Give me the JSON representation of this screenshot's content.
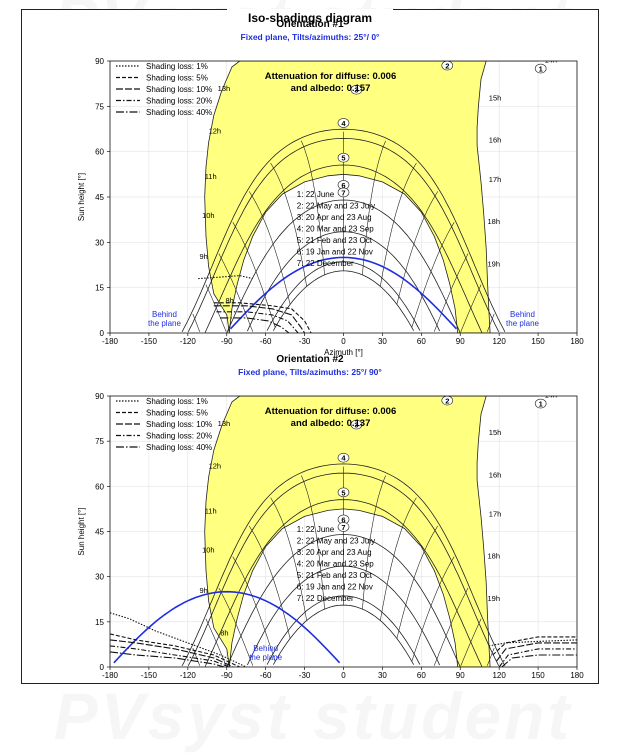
{
  "watermark": "PVsyst student",
  "title": "Iso-shadings diagram",
  "chart_data": [
    {
      "type": "line",
      "panel_title": "Orientation #1",
      "subtitle": "Fixed plane, Tilts/azimuths: 25°/ 0°",
      "xlabel": "Azimuth [°]",
      "ylabel": "Sun height [°]",
      "xlim": [
        -180,
        180
      ],
      "ylim": [
        0,
        90
      ],
      "xticks": [
        -180,
        -150,
        -120,
        -90,
        -60,
        -30,
        0,
        30,
        60,
        90,
        120,
        150,
        180
      ],
      "yticks": [
        0,
        15,
        30,
        45,
        60,
        75,
        90
      ],
      "attenuation_text": [
        "Attenuation for diffuse: 0.006",
        "and albedo: 0.157"
      ],
      "behind_label": [
        "Behind",
        "the plane"
      ],
      "behind_curve": {
        "center_azimuth": 0,
        "peak_height": 25
      },
      "shading_region": [
        [
          -90,
          6
        ],
        [
          -100,
          13
        ],
        [
          -104,
          22
        ],
        [
          -106,
          32
        ],
        [
          -107,
          45
        ],
        [
          -106,
          55
        ],
        [
          -104,
          63
        ],
        [
          -100,
          72
        ],
        [
          -94,
          80
        ],
        [
          -86,
          88
        ],
        [
          -80,
          90
        ],
        [
          150,
          90
        ],
        [
          110,
          90
        ],
        [
          106,
          84
        ],
        [
          104,
          75
        ],
        [
          103,
          68
        ],
        [
          103,
          62
        ],
        [
          104,
          58
        ],
        [
          106,
          50
        ],
        [
          108,
          40
        ],
        [
          110,
          28
        ],
        [
          111,
          17
        ],
        [
          112,
          8
        ],
        [
          113,
          0
        ],
        [
          88,
          0
        ],
        [
          86,
          8
        ],
        [
          82,
          16
        ],
        [
          77,
          24
        ],
        [
          70,
          32
        ],
        [
          60,
          40
        ],
        [
          47,
          46
        ],
        [
          30,
          50
        ],
        [
          12,
          52
        ],
        [
          0,
          52.5
        ],
        [
          -12,
          52
        ],
        [
          -30,
          50
        ],
        [
          -47,
          46
        ],
        [
          -60,
          40
        ],
        [
          -70,
          32
        ],
        [
          -77,
          24
        ],
        [
          -82,
          16
        ],
        [
          -86,
          8
        ],
        [
          -88,
          0
        ]
      ],
      "shading_losses": [
        {
          "label": "Shading loss: 1%",
          "curve": [
            [
              -112,
              18
            ],
            [
              -95,
              18.5
            ],
            [
              -80,
              19
            ],
            [
              -70,
              18
            ]
          ]
        },
        {
          "label": "Shading loss: 5%",
          "curve": [
            [
              -100,
              10
            ],
            [
              -80,
              10
            ],
            [
              -55,
              9
            ],
            [
              -40,
              8
            ],
            [
              -30,
              4
            ],
            [
              -25,
              0
            ]
          ]
        },
        {
          "label": "Shading loss: 10%",
          "curve": [
            [
              -100,
              9
            ],
            [
              -75,
              9
            ],
            [
              -55,
              8
            ],
            [
              -40,
              6
            ],
            [
              -33,
              2
            ],
            [
              -30,
              0
            ]
          ]
        },
        {
          "label": "Shading loss: 20%",
          "curve": [
            [
              -98,
              7
            ],
            [
              -75,
              7
            ],
            [
              -55,
              6
            ],
            [
              -43,
              4
            ],
            [
              -37,
              1
            ],
            [
              -35,
              0
            ]
          ]
        },
        {
          "label": "Shading loss: 40%",
          "curve": [
            [
              -95,
              5
            ],
            [
              -75,
              5
            ],
            [
              -58,
              4
            ],
            [
              -48,
              2
            ],
            [
              -42,
              0
            ]
          ]
        }
      ],
      "hour_labels": [
        {
          "text": "14h",
          "az": 155,
          "h": 89.5
        },
        {
          "text": "13h",
          "az": -97,
          "h": 80
        },
        {
          "text": "12h",
          "az": -104,
          "h": 66
        },
        {
          "text": "11h",
          "az": -107,
          "h": 51
        },
        {
          "text": "10h",
          "az": -109,
          "h": 38
        },
        {
          "text": "9h",
          "az": -111,
          "h": 24.5
        },
        {
          "text": "8h",
          "az": -91,
          "h": 10
        },
        {
          "text": "15h",
          "az": 112,
          "h": 77
        },
        {
          "text": "16h",
          "az": 112,
          "h": 63
        },
        {
          "text": "17h",
          "az": 112,
          "h": 50
        },
        {
          "text": "18h",
          "az": 111,
          "h": 36
        },
        {
          "text": "19h",
          "az": 111,
          "h": 22
        }
      ],
      "date_markers": [
        {
          "n": "1",
          "az": 152,
          "h": 87.5
        },
        {
          "n": "2",
          "az": 80,
          "h": 88.5
        },
        {
          "n": "3",
          "az": 10,
          "h": 80.5
        },
        {
          "n": "4",
          "az": 0,
          "h": 69.5
        },
        {
          "n": "5",
          "az": 0,
          "h": 58
        },
        {
          "n": "6",
          "az": 0,
          "h": 49
        },
        {
          "n": "7",
          "az": 0,
          "h": 46.5
        }
      ],
      "date_legend": [
        "1: 22 June",
        "2: 22 May and 23 July",
        "3: 20 Apr and 23 Aug",
        "4: 20 Mar and 23 Sep",
        "5: 21 Feb and 23 Oct",
        "6: 19 Jan and 22 Nov",
        "7: 22 December"
      ]
    },
    {
      "type": "line",
      "panel_title": "Orientation #2",
      "subtitle": "Fixed plane, Tilts/azimuths: 25°/ 90°",
      "xlabel": "Azimuth [°]",
      "ylabel": "Sun height [°]",
      "xlim": [
        -180,
        180
      ],
      "ylim": [
        0,
        90
      ],
      "xticks": [
        -180,
        -150,
        -120,
        -90,
        -60,
        -30,
        0,
        30,
        60,
        90,
        120,
        150,
        180
      ],
      "yticks": [
        0,
        15,
        30,
        45,
        60,
        75,
        90
      ],
      "attenuation_text": [
        "Attenuation for diffuse: 0.006",
        "and albedo: 0.137"
      ],
      "behind_label": [
        "Behind",
        "the plane"
      ],
      "behind_curve": {
        "center_azimuth": -90,
        "peak_height": 25
      },
      "shading_region": [
        [
          -90,
          6
        ],
        [
          -100,
          13
        ],
        [
          -104,
          22
        ],
        [
          -106,
          32
        ],
        [
          -107,
          45
        ],
        [
          -106,
          55
        ],
        [
          -104,
          63
        ],
        [
          -100,
          72
        ],
        [
          -94,
          80
        ],
        [
          -86,
          88
        ],
        [
          -80,
          90
        ],
        [
          150,
          90
        ],
        [
          110,
          90
        ],
        [
          106,
          84
        ],
        [
          104,
          75
        ],
        [
          103,
          68
        ],
        [
          103,
          62
        ],
        [
          104,
          58
        ],
        [
          106,
          50
        ],
        [
          108,
          40
        ],
        [
          110,
          28
        ],
        [
          111,
          17
        ],
        [
          112,
          8
        ],
        [
          113,
          0
        ],
        [
          88,
          0
        ],
        [
          86,
          8
        ],
        [
          82,
          16
        ],
        [
          77,
          24
        ],
        [
          70,
          32
        ],
        [
          60,
          40
        ],
        [
          47,
          46
        ],
        [
          30,
          50
        ],
        [
          12,
          52
        ],
        [
          0,
          52.5
        ],
        [
          -12,
          52
        ],
        [
          -30,
          50
        ],
        [
          -47,
          46
        ],
        [
          -60,
          40
        ],
        [
          -70,
          32
        ],
        [
          -77,
          24
        ],
        [
          -82,
          16
        ],
        [
          -86,
          8
        ],
        [
          -88,
          0
        ]
      ],
      "shading_losses": [
        {
          "label": "Shading loss: 1%",
          "curve": [
            [
              -180,
              18
            ],
            [
              -165,
              16
            ],
            [
              -145,
              12
            ],
            [
              -120,
              8
            ],
            [
              -95,
              4
            ],
            [
              -75,
              0
            ]
          ],
          "curve_right": [
            [
              112,
              7
            ],
            [
              125,
              8
            ],
            [
              150,
              8.5
            ],
            [
              180,
              9
            ]
          ]
        },
        {
          "label": "Shading loss: 5%",
          "curve": [
            [
              -180,
              11
            ],
            [
              -160,
              9
            ],
            [
              -130,
              7
            ],
            [
              -100,
              4
            ],
            [
              -80,
              0
            ]
          ],
          "curve_right": [
            [
              115,
              4
            ],
            [
              125,
              8
            ],
            [
              150,
              10
            ],
            [
              180,
              10
            ]
          ]
        },
        {
          "label": "Shading loss: 10%",
          "curve": [
            [
              -180,
              9
            ],
            [
              -160,
              8
            ],
            [
              -130,
              6
            ],
            [
              -100,
              3
            ],
            [
              -85,
              0
            ]
          ],
          "curve_right": [
            [
              118,
              2
            ],
            [
              125,
              6
            ],
            [
              150,
              8
            ],
            [
              180,
              8
            ]
          ]
        },
        {
          "label": "Shading loss: 20%",
          "curve": [
            [
              -180,
              7
            ],
            [
              -160,
              6
            ],
            [
              -130,
              4
            ],
            [
              -100,
              2
            ],
            [
              -88,
              0
            ]
          ],
          "curve_right": [
            [
              120,
              0
            ],
            [
              127,
              4
            ],
            [
              150,
              6
            ],
            [
              180,
              6
            ]
          ]
        },
        {
          "label": "Shading loss: 40%",
          "curve": [
            [
              -180,
              5
            ],
            [
              -160,
              4
            ],
            [
              -130,
              3
            ],
            [
              -100,
              1
            ],
            [
              -92,
              0
            ]
          ],
          "curve_right": [
            [
              122,
              0
            ],
            [
              130,
              3
            ],
            [
              150,
              4
            ],
            [
              180,
              4
            ]
          ]
        }
      ],
      "hour_labels": [
        {
          "text": "14h",
          "az": 155,
          "h": 89.5
        },
        {
          "text": "13h",
          "az": -97,
          "h": 80
        },
        {
          "text": "12h",
          "az": -104,
          "h": 66
        },
        {
          "text": "11h",
          "az": -107,
          "h": 51
        },
        {
          "text": "10h",
          "az": -109,
          "h": 38
        },
        {
          "text": "9h",
          "az": -111,
          "h": 24.5
        },
        {
          "text": "8h",
          "az": -95,
          "h": 10.5
        },
        {
          "text": "15h",
          "az": 112,
          "h": 77
        },
        {
          "text": "16h",
          "az": 112,
          "h": 63
        },
        {
          "text": "17h",
          "az": 112,
          "h": 50
        },
        {
          "text": "18h",
          "az": 111,
          "h": 36
        },
        {
          "text": "19h",
          "az": 111,
          "h": 22
        }
      ],
      "date_markers": [
        {
          "n": "1",
          "az": 152,
          "h": 87.5
        },
        {
          "n": "2",
          "az": 80,
          "h": 88.5
        },
        {
          "n": "3",
          "az": 10,
          "h": 80.5
        },
        {
          "n": "4",
          "az": 0,
          "h": 69.5
        },
        {
          "n": "5",
          "az": 0,
          "h": 58
        },
        {
          "n": "6",
          "az": 0,
          "h": 49
        },
        {
          "n": "7",
          "az": 0,
          "h": 46.5
        }
      ],
      "date_legend": [
        "1: 22 June",
        "2: 22 May and 23 July",
        "3: 20 Apr and 23 Aug",
        "4: 20 Mar and 23 Sep",
        "5: 21 Feb and 23 Oct",
        "6: 19 Jan and 22 Nov",
        "7: 22 December"
      ]
    }
  ],
  "colors": {
    "shading_fill": "#ffff80",
    "behind_curve": "#1f2fe0",
    "subtitle": "#1f2fe0",
    "grid": "#dddddd",
    "sun_path": "#222222"
  }
}
